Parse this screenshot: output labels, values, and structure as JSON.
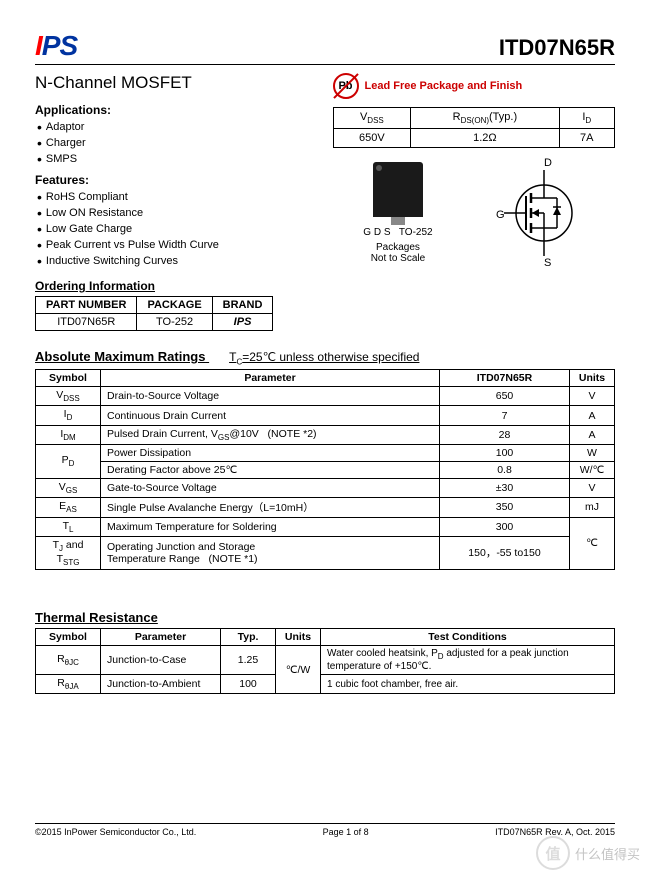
{
  "header": {
    "logo_text": "IPS",
    "part_number": "ITD07N65R"
  },
  "subtitle": "N-Channel MOSFET",
  "lead_free": {
    "pb": "Pb",
    "text": "Lead Free Package and Finish"
  },
  "applications": {
    "title": "Applications:",
    "items": [
      "Adaptor",
      "Charger",
      "SMPS"
    ]
  },
  "features": {
    "title": "Features:",
    "items": [
      "RoHS Compliant",
      "Low ON Resistance",
      "Low Gate Charge",
      "Peak Current vs Pulse Width Curve",
      "Inductive Switching Curves"
    ]
  },
  "spec_table": {
    "headers": [
      "V<sub>DSS</sub>",
      "R<sub>DS(ON)</sub>(Typ.)",
      "I<sub>D</sub>"
    ],
    "values": [
      "650V",
      "1.2Ω",
      "7A"
    ]
  },
  "ordering": {
    "title": "Ordering Information",
    "headers": [
      "PART NUMBER",
      "PACKAGE",
      "BRAND"
    ],
    "row": [
      "ITD07N65R",
      "TO-252",
      "IPS"
    ]
  },
  "package_diagram": {
    "pins": "G D S",
    "pkg": "TO-252",
    "note": "Packages\nNot to Scale",
    "terminals": {
      "d": "D",
      "g": "G",
      "s": "S"
    }
  },
  "abs_max": {
    "title": "Absolute Maximum Ratings",
    "condition": "T<sub>C</sub>=25℃ unless otherwise specified",
    "headers": [
      "Symbol",
      "Parameter",
      "ITD07N65R",
      "Units"
    ],
    "rows": [
      {
        "sym": "V<sub>DSS</sub>",
        "param": "Drain-to-Source Voltage",
        "val": "650",
        "unit": "V",
        "rowspan": 1
      },
      {
        "sym": "I<sub>D</sub>",
        "param": "Continuous Drain Current",
        "val": "7",
        "unit": "A",
        "rowspan": 1
      },
      {
        "sym": "I<sub>DM</sub>",
        "param": "Pulsed Drain Current, V<sub>GS</sub>@10V &nbsp;&nbsp;(NOTE *2)",
        "val": "28",
        "unit": "A",
        "rowspan": 1
      },
      {
        "sym": "P<sub>D</sub>",
        "param": "Power Dissipation",
        "val": "100",
        "unit": "W",
        "rowspan": 2
      },
      {
        "sym": "",
        "param": "Derating Factor above 25℃",
        "val": "0.8",
        "unit": "W/℃",
        "rowspan": 0
      },
      {
        "sym": "V<sub>GS</sub>",
        "param": "Gate-to-Source Voltage",
        "val": "±30",
        "unit": "V",
        "rowspan": 1
      },
      {
        "sym": "E<sub>AS</sub>",
        "param": "Single Pulse Avalanche Energy（L=10mH）",
        "val": "350",
        "unit": "mJ",
        "rowspan": 1
      },
      {
        "sym": "T<sub>L</sub>",
        "param": "Maximum Temperature for Soldering",
        "val": "300",
        "unit": "",
        "rowspan": 1,
        "unit_rowspan": 2,
        "unit_val": "℃"
      },
      {
        "sym": "T<sub>J</sub> and T<sub>STG</sub>",
        "param": "Operating Junction and Storage<br>Temperature Range &nbsp;&nbsp;(NOTE *1)",
        "val": "150，-55 to150",
        "unit": "",
        "rowspan": 1,
        "unit_skip": true
      }
    ]
  },
  "thermal": {
    "title": "Thermal Resistance",
    "headers": [
      "Symbol",
      "Parameter",
      "Typ.",
      "Units",
      "Test Conditions"
    ],
    "rows": [
      {
        "sym": "R<sub>θJC</sub>",
        "param": "Junction-to-Case",
        "typ": "1.25",
        "unit": "℃/W",
        "cond": "Water cooled heatsink, P<sub>D</sub> adjusted for a peak junction temperature of +150℃.",
        "unit_rowspan": 2
      },
      {
        "sym": "R<sub>θJA</sub>",
        "param": "Junction-to-Ambient",
        "typ": "100",
        "unit": "",
        "cond": "1 cubic foot chamber, free air.",
        "unit_skip": true
      }
    ]
  },
  "footer": {
    "copyright": "©2015 InPower Semiconductor Co., Ltd.",
    "page": "Page 1 of 8",
    "rev": "ITD07N65R Rev. A, Oct. 2015"
  },
  "watermark": {
    "circle": "值",
    "text": "什么值得买"
  }
}
